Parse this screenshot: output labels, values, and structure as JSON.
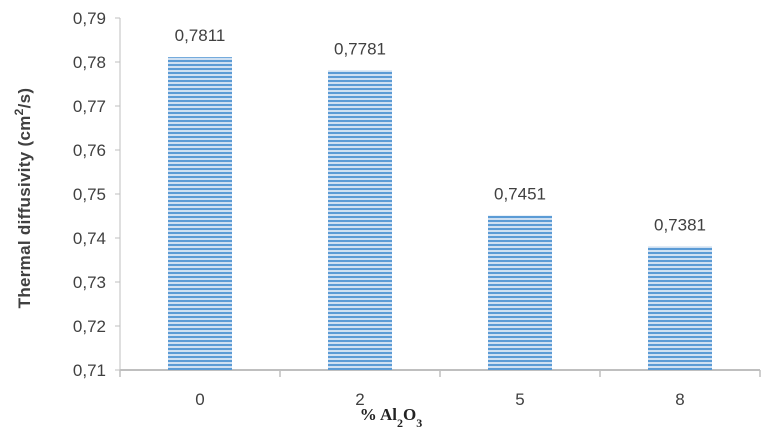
{
  "chart_data": {
    "type": "bar",
    "categories": [
      "0",
      "2",
      "5",
      "8"
    ],
    "values": [
      0.7811,
      0.7781,
      0.7451,
      0.7381
    ],
    "data_labels": [
      "0,7811",
      "0,7781",
      "0,7451",
      "0,7381"
    ],
    "ylim": [
      0.71,
      0.79
    ],
    "yticks": [
      "0,71",
      "0,72",
      "0,73",
      "0,74",
      "0,75",
      "0,76",
      "0,77",
      "0,78",
      "0,79"
    ],
    "ylabel": {
      "prefix": "Thermal  diffusivity (cm",
      "sup": "2",
      "suffix": "/s)"
    },
    "xlabel": {
      "prefix": "% Al",
      "sub1": "2",
      "mid": "O",
      "sub2": "3"
    },
    "grid": false,
    "legend": "none",
    "colors": {
      "bar_fill": "#5b9bd5",
      "bar_stripe_light": "#cfe0f2",
      "axis": "#bfbfbf",
      "text": "#404040"
    }
  }
}
